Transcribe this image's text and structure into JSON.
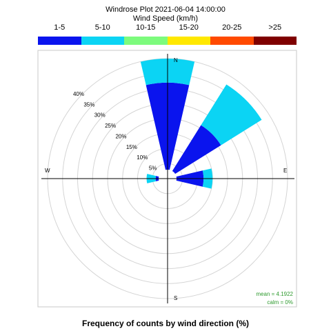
{
  "title": "Windrose Plot  2021-06-04 14:00:00",
  "subtitle": "Wind Speed (km/h)",
  "footer": "Frequency of counts by wind direction (%)",
  "stats": {
    "mean": "mean = 4.1922",
    "calm": "calm = 0%"
  },
  "chart_data": {
    "type": "windrose",
    "speed_bins": [
      "1-5",
      "5-10",
      "10-15",
      "15-20",
      "20-25",
      ">25"
    ],
    "bin_colors": [
      "#0a14ee",
      "#0bd4f4",
      "#7dfb7d",
      "#ffe800",
      "#ff4a00",
      "#7f0000"
    ],
    "directions": [
      "N",
      "NE",
      "E",
      "W"
    ],
    "compass_labels": [
      "N",
      "E",
      "S",
      "W"
    ],
    "ring_labels": [
      "5%",
      "10%",
      "15%",
      "20%",
      "25%",
      "30%",
      "35%",
      "40%"
    ],
    "ring_values": [
      5,
      10,
      15,
      20,
      25,
      30,
      35,
      40
    ],
    "rmax": 40,
    "sectors": [
      {
        "direction": "N",
        "cumulative": [
          32,
          40,
          40,
          40,
          40,
          40
        ]
      },
      {
        "direction": "NE",
        "cumulative": [
          21,
          37,
          37,
          37,
          37,
          37
        ]
      },
      {
        "direction": "E",
        "cumulative": [
          12,
          15,
          15,
          15,
          15,
          15
        ]
      },
      {
        "direction": "W",
        "cumulative": [
          4,
          7,
          7,
          7,
          7,
          7
        ]
      }
    ]
  }
}
